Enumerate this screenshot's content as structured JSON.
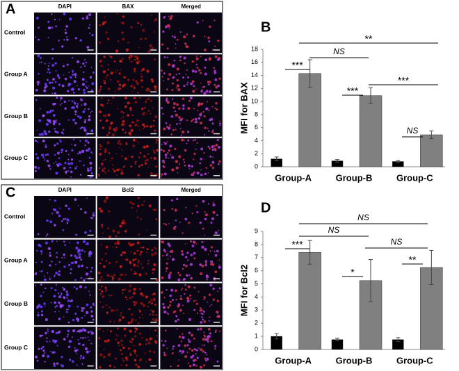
{
  "figure": {
    "panel_a": {
      "label": "A",
      "columns": [
        "DAPI",
        "BAX",
        "Merged"
      ],
      "rows": [
        "Control",
        "Group A",
        "Group B",
        "Group C"
      ]
    },
    "panel_c": {
      "label": "C",
      "columns": [
        "DAPI",
        "Bcl2",
        "Merged"
      ],
      "rows": [
        "Control",
        "Group A",
        "Group B",
        "Group C"
      ]
    }
  },
  "chart_data": [
    {
      "type": "bar",
      "panel_label": "B",
      "ylabel": "MFI for BAX",
      "categories": [
        "Group-A",
        "Group-B",
        "Group-C"
      ],
      "series": [
        {
          "color": "#000000",
          "values": [
            1.2,
            0.9,
            0.8
          ],
          "errors": [
            0.3,
            0.2,
            0.15
          ]
        },
        {
          "color": "#808080",
          "values": [
            14.3,
            10.9,
            4.9
          ],
          "errors": [
            2.1,
            1.2,
            0.6
          ]
        }
      ],
      "ylim": [
        0,
        18
      ],
      "yticks": [
        0,
        2,
        4,
        6,
        8,
        10,
        12,
        14,
        16,
        18
      ],
      "grid": false,
      "annotations": [
        "***",
        "NS",
        "**",
        "***",
        "***",
        "NS"
      ]
    },
    {
      "type": "bar",
      "panel_label": "D",
      "ylabel": "MFI for Bcl2",
      "categories": [
        "Group-A",
        "Group-B",
        "Group-C"
      ],
      "series": [
        {
          "color": "#000000",
          "values": [
            1.0,
            0.75,
            0.75
          ],
          "errors": [
            0.2,
            0.1,
            0.15
          ]
        },
        {
          "color": "#808080",
          "values": [
            7.4,
            5.25,
            6.25
          ],
          "errors": [
            0.9,
            1.6,
            1.3
          ]
        }
      ],
      "ylim": [
        0,
        9
      ],
      "yticks": [
        0,
        1,
        2,
        3,
        4,
        5,
        6,
        7,
        8,
        9
      ],
      "grid": false,
      "annotations": [
        "***",
        "NS",
        "NS",
        "*",
        "NS",
        "**"
      ]
    }
  ]
}
